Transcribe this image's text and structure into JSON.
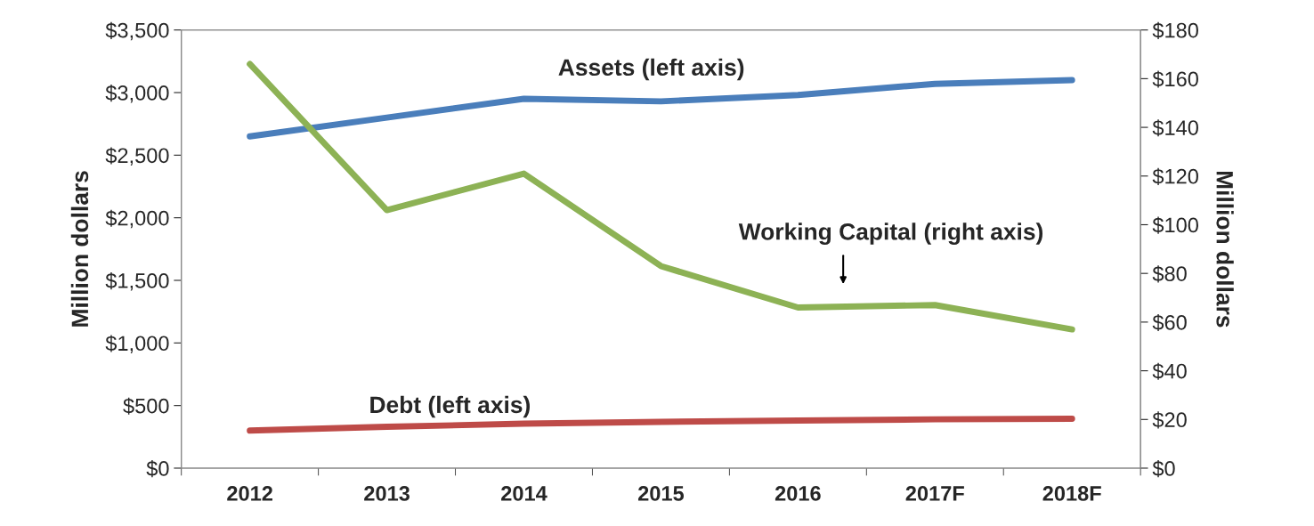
{
  "chart_data": {
    "type": "line",
    "categories": [
      "2012",
      "2013",
      "2014",
      "2015",
      "2016",
      "2017F",
      "2018F"
    ],
    "series": [
      {
        "color": "#4a7ebb",
        "values": [
          2650,
          2800,
          2950,
          2930,
          2980,
          3070,
          3100
        ]
      },
      {
        "color": "#8db255",
        "axis": "y2",
        "values": [
          166,
          106,
          121,
          83,
          66,
          67,
          57
        ]
      },
      {
        "color": "#be4b48",
        "values": [
          300,
          330,
          355,
          370,
          380,
          390,
          395
        ]
      }
    ],
    "ylabel": "Million dollars",
    "y2label": "Million dollars",
    "ylim": [
      0,
      3500
    ],
    "yticks": [
      {
        "value": 0,
        "label": "$0"
      },
      {
        "value": 500,
        "label": "$500"
      },
      {
        "value": 1000,
        "label": "$1,000"
      },
      {
        "value": 1500,
        "label": "$1,500"
      },
      {
        "value": 2000,
        "label": "$2,000"
      },
      {
        "value": 2500,
        "label": "$2,500"
      },
      {
        "value": 3000,
        "label": "$3,000"
      },
      {
        "value": 3500,
        "label": "$3,500"
      }
    ],
    "y2lim": [
      0,
      180
    ],
    "y2ticks": [
      {
        "value": 0,
        "label": "$0"
      },
      {
        "value": 20,
        "label": "$20"
      },
      {
        "value": 40,
        "label": "$40"
      },
      {
        "value": 60,
        "label": "$60"
      },
      {
        "value": 80,
        "label": "$80"
      },
      {
        "value": 100,
        "label": "$100"
      },
      {
        "value": 120,
        "label": "$120"
      },
      {
        "value": 140,
        "label": "$140"
      },
      {
        "value": 160,
        "label": "$160"
      },
      {
        "value": 180,
        "label": "$180"
      }
    ],
    "annotations": [
      "Assets (left axis)",
      "Working Capital (right axis)",
      "Debt (left axis)"
    ],
    "grid": false,
    "legend": false,
    "marker": "none",
    "line_style": "solid"
  }
}
